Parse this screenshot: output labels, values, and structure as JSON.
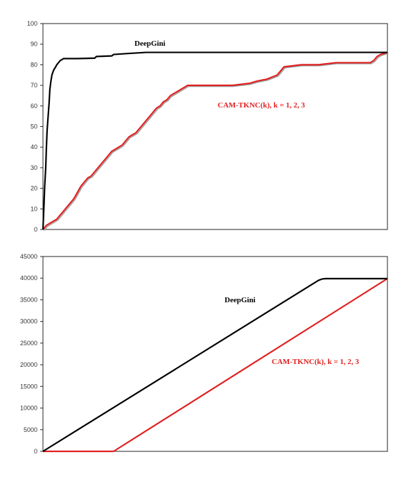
{
  "chart_data": [
    {
      "type": "line",
      "title": "",
      "xlabel": "",
      "ylabel": "",
      "ylim": [
        0,
        100
      ],
      "yticks": [
        0,
        10,
        20,
        30,
        40,
        50,
        60,
        70,
        80,
        90,
        100
      ],
      "xlim": [
        0,
        100
      ],
      "x_ticks_shown": false,
      "grid": false,
      "legend": "none",
      "series": [
        {
          "name": "DeepGini",
          "color": "#000000",
          "x": [
            0,
            0.3,
            0.5,
            0.8,
            1.0,
            1.2,
            1.5,
            1.8,
            2.0,
            2.3,
            2.6,
            3.0,
            3.3,
            3.7,
            4.0,
            4.5,
            5.0,
            5.5,
            6.0,
            6.5,
            7.5,
            10,
            15,
            15.5,
            20,
            20.5,
            25,
            30,
            40,
            50,
            60,
            70,
            80,
            90,
            100
          ],
          "values": [
            0,
            12,
            21,
            30,
            40,
            48,
            55,
            62,
            68,
            72,
            75,
            77,
            78,
            79,
            80,
            81,
            82,
            82.5,
            83,
            83,
            83,
            83,
            83.2,
            84,
            84.3,
            85,
            85.5,
            86,
            86,
            86,
            86,
            86,
            86,
            86,
            86
          ]
        },
        {
          "name": "CAM-TKNC(k), k = 1, 2, 3",
          "color": "#e02020",
          "x": [
            0,
            0.5,
            1,
            2,
            3,
            4,
            5,
            6,
            7,
            8,
            9,
            10,
            11,
            12,
            13,
            14,
            15,
            16,
            17,
            18,
            19,
            20,
            21,
            22,
            23,
            24,
            25,
            26,
            27,
            28,
            29,
            30,
            31,
            32,
            33,
            34,
            35,
            36,
            37,
            38,
            39,
            40,
            41,
            42,
            43,
            44,
            45,
            46,
            47,
            48,
            50,
            55,
            60,
            62,
            65,
            68,
            70,
            75,
            80,
            85,
            90,
            95,
            96,
            97,
            98,
            100
          ],
          "values": [
            0,
            1,
            2,
            3,
            4,
            5,
            7,
            9,
            11,
            13,
            15,
            18,
            21,
            23,
            25,
            26,
            28,
            30,
            32,
            34,
            36,
            38,
            39,
            40,
            41,
            43,
            45,
            46,
            47,
            49,
            51,
            53,
            55,
            57,
            59,
            60,
            62,
            63,
            65,
            66,
            67,
            68,
            69,
            70,
            70,
            70,
            70,
            70,
            70,
            70,
            70,
            70,
            71,
            72,
            73,
            75,
            79,
            80,
            80,
            81,
            81,
            81,
            82,
            84,
            85,
            86
          ]
        }
      ],
      "annotations": [
        "DeepGini",
        "CAM-TKNC(k), k = 1, 2, 3"
      ]
    },
    {
      "type": "line",
      "title": "",
      "xlabel": "",
      "ylabel": "",
      "ylim": [
        0,
        45000
      ],
      "yticks": [
        0,
        5000,
        10000,
        15000,
        20000,
        25000,
        30000,
        35000,
        40000,
        45000
      ],
      "xlim": [
        0,
        100
      ],
      "x_ticks_shown": false,
      "grid": false,
      "legend": "none",
      "series": [
        {
          "name": "DeepGini",
          "color": "#000000",
          "x": [
            0,
            80,
            81,
            82,
            100
          ],
          "values": [
            0,
            39500,
            39800,
            39900,
            39900
          ]
        },
        {
          "name": "CAM-TKNC(k), k = 1, 2, 3",
          "color": "#e02020",
          "x": [
            0,
            20.5,
            100
          ],
          "values": [
            0,
            0,
            39900
          ]
        }
      ],
      "annotations": [
        "DeepGini",
        "CAM-TKNC(k), k = 1, 2, 3"
      ]
    }
  ]
}
